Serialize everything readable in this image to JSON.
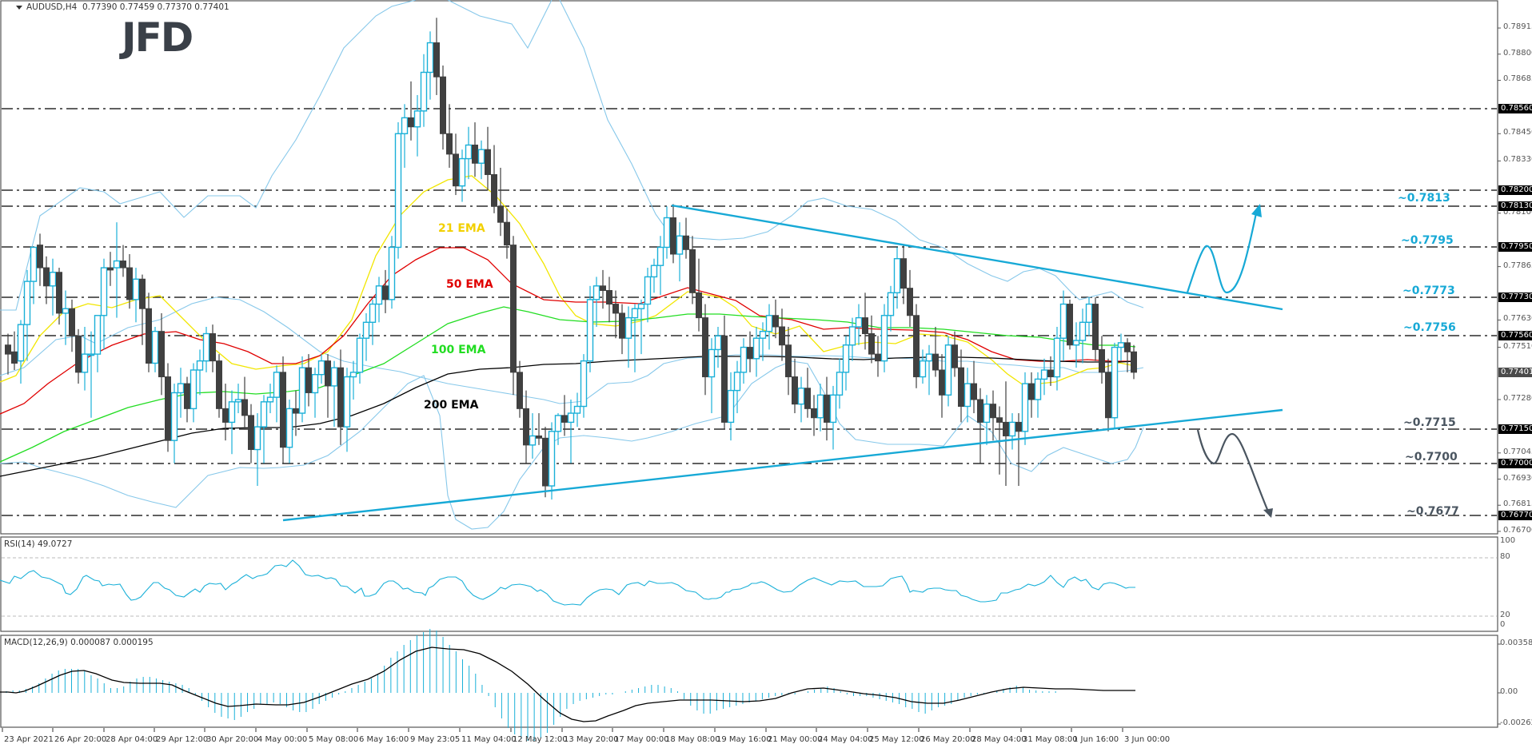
{
  "header": {
    "symbol": "AUDUSD,H4",
    "ohlc": "0.77390 0.77459 0.77370 0.77401",
    "logo": "JFD"
  },
  "ema_labels": {
    "ema21": "21 EMA",
    "ema50": "50 EMA",
    "ema100": "100 EMA",
    "ema200": "200 EMA"
  },
  "levels": {
    "l7813": "~0.7813",
    "l7795": "~0.7795",
    "l7773": "~0.7773",
    "l7756": "~0.7756",
    "l7715": "~0.7715",
    "l7700": "~0.7700",
    "l7677": "~0.7677"
  },
  "price_axis": {
    "ticks": [
      "0.78915",
      "0.78800",
      "0.78685",
      "0.78450",
      "0.78330",
      "0.78100",
      "0.77865",
      "0.77630",
      "0.77510",
      "0.77280",
      "0.77045",
      "0.76930",
      "0.76815",
      "0.76700"
    ],
    "boxed": [
      "0.78560",
      "0.78200",
      "0.78130",
      "0.77950",
      "0.77730",
      "0.77560",
      "0.77150",
      "0.77000",
      "0.76770"
    ],
    "current": "0.77401"
  },
  "rsi": {
    "label": "RSI(14) 49.0727",
    "ticks": [
      "100",
      "80",
      "20",
      "0"
    ]
  },
  "macd": {
    "label": "MACD(12,26,9) 0.000087 0.000195",
    "ticks": [
      "0.003582",
      "0.00",
      "-0.002626"
    ]
  },
  "time_axis": [
    "23 Apr 2021",
    "26 Apr 20:00",
    "28 Apr 04:00",
    "29 Apr 12:00",
    "30 Apr 20:00",
    "4 May 00:00",
    "5 May 08:00",
    "6 May 16:00",
    "9 May 23:05",
    "11 May 04:00",
    "12 May 12:00",
    "13 May 20:00",
    "17 May 00:00",
    "18 May 08:00",
    "19 May 16:00",
    "21 May 00:00",
    "24 May 04:00",
    "25 May 12:00",
    "26 May 20:00",
    "28 May 04:00",
    "31 May 08:00",
    "1 Jun 16:00",
    "3 Jun 00:00"
  ],
  "colors": {
    "bull": "#1ab0d8",
    "bear": "#404040",
    "ema21": "#ffff00",
    "ema50": "#e00000",
    "ema100": "#22dd22",
    "ema200": "#000000",
    "bollinger": "#87c8ea",
    "trendline": "#17a9d6",
    "bear_path": "#4a5560",
    "level_blue": "#17a9d6",
    "level_gray": "#4a5560"
  },
  "chart_data": {
    "type": "candlestick",
    "title": "AUDUSD,H4",
    "symbol": "AUDUSD",
    "timeframe": "H4",
    "last_ohlc": {
      "open": 0.7739,
      "high": 0.77459,
      "low": 0.7737,
      "close": 0.77401
    },
    "ylim": [
      0.767,
      0.78915
    ],
    "horizontal_levels": [
      0.7856,
      0.782,
      0.7813,
      0.7795,
      0.7773,
      0.7756,
      0.7715,
      0.77,
      0.7677
    ],
    "annotated_levels": [
      0.7813,
      0.7795,
      0.7773,
      0.7756,
      0.7715,
      0.77,
      0.7677
    ],
    "trendlines": [
      {
        "name": "downtrend resistance",
        "from": {
          "time": "18 May 08:00",
          "price": 0.7813
        },
        "to": {
          "time": "projected",
          "price": 0.7764
        }
      },
      {
        "name": "uptrend support",
        "from": {
          "time": "4 May 00:00",
          "price": 0.7675
        },
        "to": {
          "time": "projected",
          "price": 0.7722
        }
      }
    ],
    "indicators": [
      "21 EMA",
      "50 EMA",
      "100 EMA",
      "200 EMA",
      "Bollinger Bands",
      "RSI(14)",
      "MACD(12,26,9)"
    ],
    "rsi": {
      "value": 49.0727,
      "levels": [
        80,
        20
      ],
      "range": [
        0,
        100
      ]
    },
    "macd": {
      "main": 8.7e-05,
      "signal": 0.000195,
      "range": [
        -0.002626,
        0.003582
      ]
    },
    "scenarios": [
      {
        "direction": "bullish",
        "targets": [
          0.7795,
          0.7813
        ]
      },
      {
        "direction": "bearish",
        "targets": [
          0.77,
          0.7677
        ]
      }
    ],
    "x_tick_labels": [
      "23 Apr 2021",
      "26 Apr 20:00",
      "28 Apr 04:00",
      "29 Apr 12:00",
      "30 Apr 20:00",
      "4 May 00:00",
      "5 May 08:00",
      "6 May 16:00",
      "9 May 23:05",
      "11 May 04:00",
      "12 May 12:00",
      "13 May 20:00",
      "17 May 00:00",
      "18 May 08:00",
      "19 May 16:00",
      "21 May 00:00",
      "24 May 04:00",
      "25 May 12:00",
      "26 May 20:00",
      "28 May 04:00",
      "31 May 08:00",
      "1 Jun 16:00",
      "3 Jun 00:00"
    ]
  }
}
